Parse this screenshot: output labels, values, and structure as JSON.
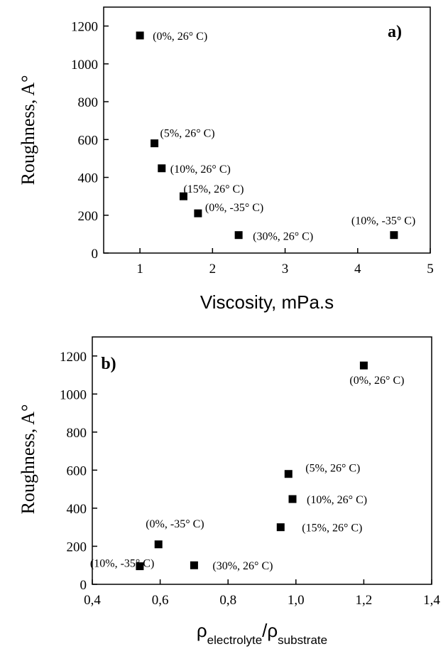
{
  "chart_data": [
    {
      "type": "scatter",
      "panel_label": "a)",
      "xlabel": "Viscosity, mPa.s",
      "ylabel": "Roughness, A°",
      "xlim": [
        0.5,
        5
      ],
      "ylim": [
        0,
        1300
      ],
      "xticks": [
        1,
        2,
        3,
        4,
        5
      ],
      "xtick_labels": [
        "1",
        "2",
        "3",
        "4",
        "5"
      ],
      "yticks": [
        0,
        200,
        400,
        600,
        800,
        1000,
        1200
      ],
      "ytick_labels": [
        "0",
        "200",
        "400",
        "600",
        "800",
        "1000",
        "1200"
      ],
      "grid": false,
      "marker": "filled-square",
      "points": [
        {
          "x": 1.0,
          "y": 1150,
          "label": "(0%, 26° C)"
        },
        {
          "x": 1.2,
          "y": 580,
          "label": "(5%, 26° C)"
        },
        {
          "x": 1.3,
          "y": 448,
          "label": "(10%, 26° C)"
        },
        {
          "x": 1.6,
          "y": 300,
          "label": "(15%, 26° C)"
        },
        {
          "x": 1.8,
          "y": 210,
          "label": "(0%, -35° C)"
        },
        {
          "x": 2.36,
          "y": 95,
          "label": "(30%, 26° C)"
        },
        {
          "x": 4.5,
          "y": 95,
          "label": "(10%, -35° C)"
        }
      ]
    },
    {
      "type": "scatter",
      "panel_label": "b)",
      "xlabel_base": "ρ",
      "xlabel_sub1": "electrolyte",
      "xlabel_sep": "/ρ",
      "xlabel_sub2": "substrate",
      "ylabel": "Roughness, A°",
      "xlim": [
        0.4,
        1.4
      ],
      "ylim": [
        0,
        1300
      ],
      "xticks": [
        0.4,
        0.6,
        0.8,
        1.0,
        1.2,
        1.4
      ],
      "xtick_labels": [
        "0,4",
        "0,6",
        "0,8",
        "1,0",
        "1,2",
        "1,4"
      ],
      "yticks": [
        0,
        200,
        400,
        600,
        800,
        1000,
        1200
      ],
      "ytick_labels": [
        "0",
        "200",
        "400",
        "600",
        "800",
        "1000",
        "1200"
      ],
      "grid": false,
      "marker": "filled-square",
      "points": [
        {
          "x": 1.2,
          "y": 1150,
          "label": "(0%, 26° C)"
        },
        {
          "x": 0.978,
          "y": 580,
          "label": "(5%, 26° C)"
        },
        {
          "x": 0.99,
          "y": 448,
          "label": "(10%, 26° C)"
        },
        {
          "x": 0.955,
          "y": 300,
          "label": "(15%, 26° C)"
        },
        {
          "x": 0.595,
          "y": 210,
          "label": "(0%, -35° C)"
        },
        {
          "x": 0.54,
          "y": 95,
          "label": "(10%, -35° C)"
        },
        {
          "x": 0.7,
          "y": 100,
          "label": "(30%, 26° C)"
        }
      ]
    }
  ]
}
